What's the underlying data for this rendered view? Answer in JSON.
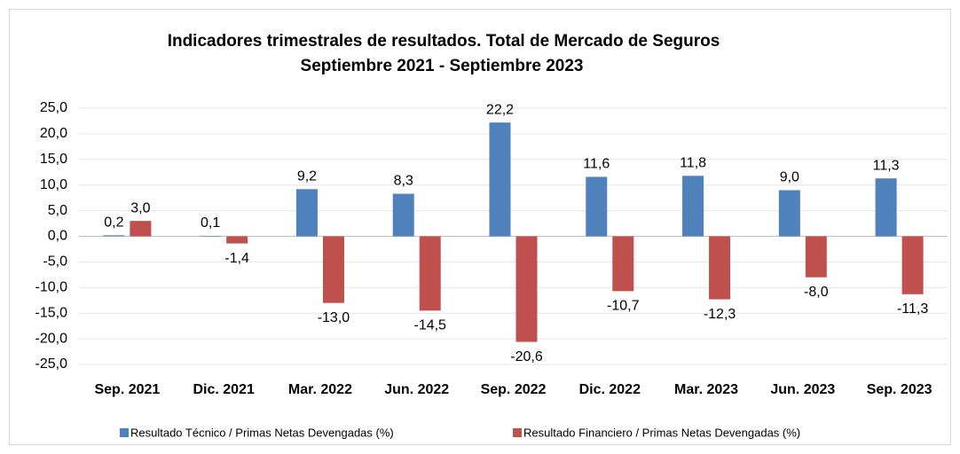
{
  "chart_data": {
    "type": "bar",
    "title": "Indicadores trimestrales de resultados. Total de Mercado de Seguros",
    "subtitle": "Septiembre 2021 - Septiembre 2023",
    "categories": [
      "Sep. 2021",
      "Dic. 2021",
      "Mar. 2022",
      "Jun. 2022",
      "Sep. 2022",
      "Dic. 2022",
      "Mar. 2023",
      "Jun. 2023",
      "Sep. 2023"
    ],
    "series": [
      {
        "name": "Resultado Técnico / Primas Netas Devengadas (%)",
        "color": "#4f81bd",
        "values": [
          0.2,
          0.1,
          9.2,
          8.3,
          22.2,
          11.6,
          11.8,
          9.0,
          11.3
        ],
        "value_labels": [
          "0,2",
          "0,1",
          "9,2",
          "8,3",
          "22,2",
          "11,6",
          "11,8",
          "9,0",
          "11,3"
        ]
      },
      {
        "name": "Resultado Financiero / Primas Netas Devengadas (%)",
        "color": "#c0504d",
        "values": [
          3.0,
          -1.4,
          -13.0,
          -14.5,
          -20.6,
          -10.7,
          -12.3,
          -8.0,
          -11.3
        ],
        "value_labels": [
          "3,0",
          "-1,4",
          "-13,0",
          "-14,5",
          "-20,6",
          "-10,7",
          "-12,3",
          "-8,0",
          "-11,3"
        ]
      }
    ],
    "ylim": [
      -25,
      25
    ],
    "yticks": [
      {
        "value": 25,
        "label": "25,0"
      },
      {
        "value": 20,
        "label": "20,0"
      },
      {
        "value": 15,
        "label": "15,0"
      },
      {
        "value": 10,
        "label": "10,0"
      },
      {
        "value": 5,
        "label": "5,0"
      },
      {
        "value": 0,
        "label": "0,0"
      },
      {
        "value": -5,
        "label": "-5,0"
      },
      {
        "value": -10,
        "label": "-10,0"
      },
      {
        "value": -15,
        "label": "-15,0"
      },
      {
        "value": -20,
        "label": "-20,0"
      },
      {
        "value": -25,
        "label": "-25,0"
      }
    ],
    "grid": true,
    "legend": "bottom"
  }
}
